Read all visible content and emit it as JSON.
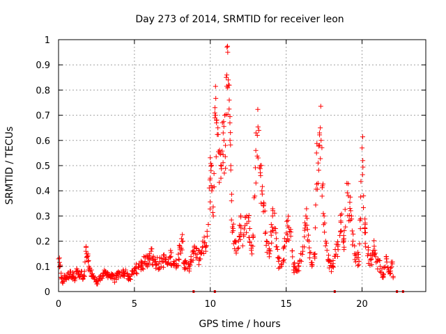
{
  "chart_data": {
    "type": "scatter",
    "title": "Day 273 of 2014, SRMTID for receiver leon",
    "xlabel": "GPS time / hours",
    "ylabel": "SRMTID / TECUs",
    "xlim": [
      0,
      24.2
    ],
    "ylim": [
      0,
      1
    ],
    "xticks": [
      "0",
      "5",
      "10",
      "15",
      "20"
    ],
    "yticks": [
      "0",
      "0.1",
      "0.2",
      "0.3",
      "0.4",
      "0.5",
      "0.6",
      "0.7",
      "0.8",
      "0.9",
      "1"
    ],
    "grid": true,
    "marker": "plus",
    "color": "#ff0000",
    "series": [
      {
        "name": "SRMTID",
        "points": [
          [
            0.0,
            0.13
          ],
          [
            0.1,
            0.1
          ],
          [
            0.2,
            0.05
          ],
          [
            0.3,
            0.04
          ],
          [
            0.4,
            0.06
          ],
          [
            0.5,
            0.05
          ],
          [
            0.6,
            0.07
          ],
          [
            0.7,
            0.06
          ],
          [
            0.8,
            0.08
          ],
          [
            0.9,
            0.06
          ],
          [
            1.0,
            0.07
          ],
          [
            1.1,
            0.05
          ],
          [
            1.2,
            0.09
          ],
          [
            1.3,
            0.07
          ],
          [
            1.4,
            0.06
          ],
          [
            1.5,
            0.08
          ],
          [
            1.6,
            0.05
          ],
          [
            1.7,
            0.06
          ],
          [
            1.8,
            0.16
          ],
          [
            1.85,
            0.15
          ],
          [
            1.9,
            0.14
          ],
          [
            1.95,
            0.12
          ],
          [
            2.0,
            0.1
          ],
          [
            2.1,
            0.08
          ],
          [
            2.2,
            0.07
          ],
          [
            2.3,
            0.06
          ],
          [
            2.5,
            0.04
          ],
          [
            2.7,
            0.05
          ],
          [
            2.9,
            0.06
          ],
          [
            3.1,
            0.08
          ],
          [
            3.3,
            0.07
          ],
          [
            3.5,
            0.06
          ],
          [
            3.7,
            0.05
          ],
          [
            3.9,
            0.07
          ],
          [
            4.1,
            0.06
          ],
          [
            4.3,
            0.08
          ],
          [
            4.5,
            0.07
          ],
          [
            4.7,
            0.05
          ],
          [
            4.9,
            0.08
          ],
          [
            5.1,
            0.09
          ],
          [
            5.3,
            0.1
          ],
          [
            5.5,
            0.11
          ],
          [
            5.7,
            0.12
          ],
          [
            5.9,
            0.13
          ],
          [
            6.0,
            0.15
          ],
          [
            6.1,
            0.16
          ],
          [
            6.2,
            0.13
          ],
          [
            6.4,
            0.12
          ],
          [
            6.6,
            0.11
          ],
          [
            6.8,
            0.12
          ],
          [
            7.0,
            0.13
          ],
          [
            7.2,
            0.11
          ],
          [
            7.4,
            0.14
          ],
          [
            7.6,
            0.12
          ],
          [
            7.8,
            0.1
          ],
          [
            8.0,
            0.18
          ],
          [
            8.1,
            0.21
          ],
          [
            8.2,
            0.2
          ],
          [
            8.3,
            0.11
          ],
          [
            8.5,
            0.09
          ],
          [
            8.7,
            0.12
          ],
          [
            8.9,
            0.15
          ],
          [
            9.1,
            0.17
          ],
          [
            9.3,
            0.13
          ],
          [
            9.5,
            0.2
          ],
          [
            9.7,
            0.16
          ],
          [
            9.8,
            0.22
          ],
          [
            10.0,
            0.45
          ],
          [
            10.05,
            0.48
          ],
          [
            10.1,
            0.4
          ],
          [
            10.2,
            0.3
          ],
          [
            10.3,
            0.69
          ],
          [
            10.35,
            0.7
          ],
          [
            10.4,
            0.68
          ],
          [
            10.5,
            0.65
          ],
          [
            10.6,
            0.55
          ],
          [
            10.7,
            0.45
          ],
          [
            10.8,
            0.67
          ],
          [
            10.85,
            0.63
          ],
          [
            10.9,
            0.6
          ],
          [
            11.0,
            0.58
          ],
          [
            11.05,
            0.85
          ],
          [
            11.1,
            0.97
          ],
          [
            11.15,
            0.95
          ],
          [
            11.2,
            0.82
          ],
          [
            11.25,
            0.76
          ],
          [
            11.3,
            0.6
          ],
          [
            11.35,
            0.5
          ],
          [
            11.4,
            0.36
          ],
          [
            11.5,
            0.25
          ],
          [
            11.6,
            0.2
          ],
          [
            11.8,
            0.17
          ],
          [
            12.0,
            0.26
          ],
          [
            12.2,
            0.22
          ],
          [
            12.4,
            0.3
          ],
          [
            12.6,
            0.25
          ],
          [
            12.8,
            0.18
          ],
          [
            13.0,
            0.56
          ],
          [
            13.1,
            0.62
          ],
          [
            13.2,
            0.64
          ],
          [
            13.3,
            0.5
          ],
          [
            13.4,
            0.4
          ],
          [
            13.5,
            0.34
          ],
          [
            13.6,
            0.32
          ],
          [
            13.7,
            0.2
          ],
          [
            13.9,
            0.15
          ],
          [
            14.1,
            0.3
          ],
          [
            14.3,
            0.25
          ],
          [
            14.5,
            0.12
          ],
          [
            14.7,
            0.1
          ],
          [
            14.9,
            0.18
          ],
          [
            15.1,
            0.26
          ],
          [
            15.3,
            0.22
          ],
          [
            15.5,
            0.1
          ],
          [
            15.7,
            0.08
          ],
          [
            15.9,
            0.12
          ],
          [
            16.1,
            0.16
          ],
          [
            16.3,
            0.3
          ],
          [
            16.5,
            0.2
          ],
          [
            16.7,
            0.1
          ],
          [
            16.9,
            0.15
          ],
          [
            17.0,
            0.55
          ],
          [
            17.1,
            0.43
          ],
          [
            17.2,
            0.63
          ],
          [
            17.25,
            0.65
          ],
          [
            17.3,
            0.6
          ],
          [
            17.4,
            0.42
          ],
          [
            17.5,
            0.3
          ],
          [
            17.6,
            0.2
          ],
          [
            17.8,
            0.12
          ],
          [
            18.0,
            0.1
          ],
          [
            18.2,
            0.14
          ],
          [
            18.4,
            0.18
          ],
          [
            18.6,
            0.28
          ],
          [
            18.8,
            0.2
          ],
          [
            19.0,
            0.43
          ],
          [
            19.1,
            0.38
          ],
          [
            19.2,
            0.33
          ],
          [
            19.3,
            0.3
          ],
          [
            19.4,
            0.2
          ],
          [
            19.6,
            0.15
          ],
          [
            19.8,
            0.12
          ],
          [
            20.0,
            0.57
          ],
          [
            20.05,
            0.52
          ],
          [
            20.1,
            0.38
          ],
          [
            20.2,
            0.25
          ],
          [
            20.4,
            0.15
          ],
          [
            20.6,
            0.13
          ],
          [
            20.8,
            0.18
          ],
          [
            21.0,
            0.12
          ],
          [
            21.2,
            0.1
          ],
          [
            21.4,
            0.06
          ],
          [
            21.6,
            0.13
          ],
          [
            21.8,
            0.08
          ],
          [
            22.0,
            0.11
          ],
          [
            22.05,
            0.06
          ]
        ]
      }
    ],
    "zero_markers_x": [
      8.9,
      10.3,
      18.2,
      22.3,
      22.7
    ]
  }
}
